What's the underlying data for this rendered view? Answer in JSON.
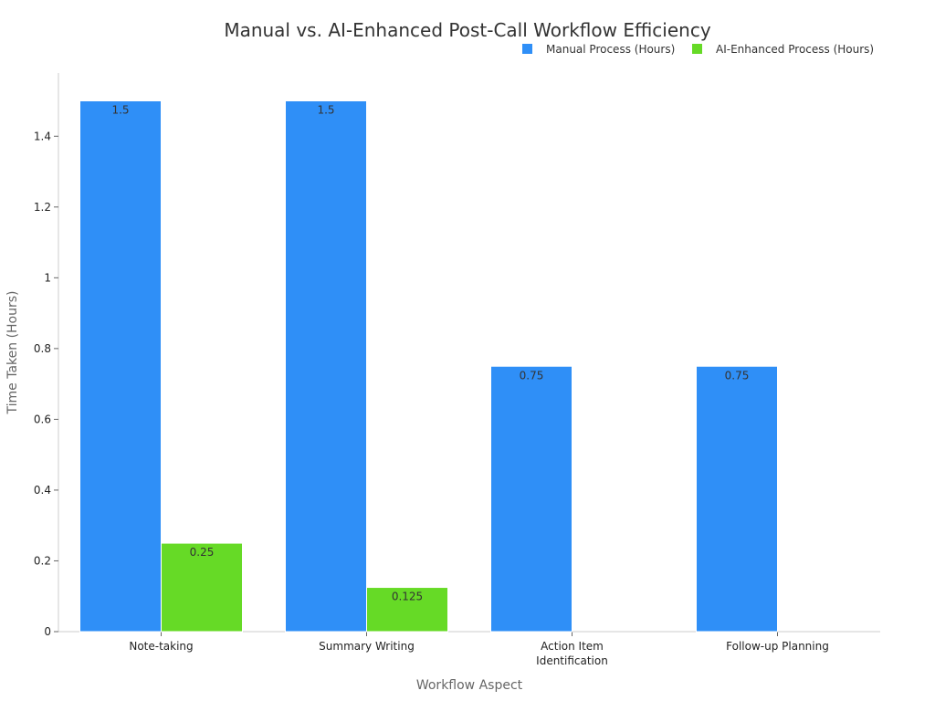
{
  "chart_data": {
    "type": "bar",
    "title": "Manual vs. AI-Enhanced Post-Call Workflow Efficiency",
    "xlabel": "Workflow Aspect",
    "ylabel": "Time Taken (Hours)",
    "categories": [
      [
        "Note-taking"
      ],
      [
        "Summary Writing"
      ],
      [
        "Action Item",
        "Identification"
      ],
      [
        "Follow-up Planning"
      ]
    ],
    "series": [
      {
        "name": "Manual Process (Hours)",
        "color": "#2f8ff7",
        "values": [
          1.5,
          1.5,
          0.75,
          0.75
        ]
      },
      {
        "name": "AI-Enhanced Process (Hours)",
        "color": "#66da26",
        "values": [
          0.25,
          0.125,
          null,
          null
        ]
      }
    ],
    "data_labels": [
      [
        "1.5",
        "1.5",
        "0.75",
        "0.75"
      ],
      [
        "0.25",
        "0.125",
        null,
        null
      ]
    ],
    "yticks": [
      0,
      0.2,
      0.4,
      0.6,
      0.8,
      1,
      1.2,
      1.4
    ],
    "ytick_labels": [
      "0",
      "0.2",
      "0.4",
      "0.6",
      "0.8",
      "1",
      "1.2",
      "1.4"
    ],
    "ylim": [
      0,
      1.5
    ],
    "legend_position": "top-right",
    "grid": false
  }
}
